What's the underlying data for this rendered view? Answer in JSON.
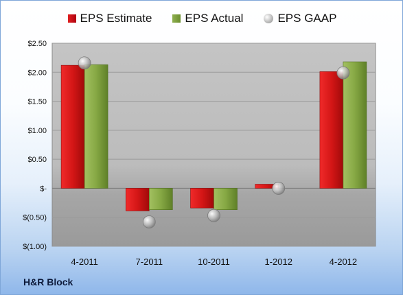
{
  "legend": {
    "estimate": "EPS Estimate",
    "actual": "EPS Actual",
    "gaap": "EPS GAAP"
  },
  "company": "H&R Block",
  "colors": {
    "estimate": "#d01a1a",
    "actual": "#7fa23e",
    "gaap": "#b0b0b0"
  },
  "chart_data": {
    "type": "bar",
    "categories": [
      "4-2011",
      "7-2011",
      "10-2011",
      "1-2012",
      "4-2012"
    ],
    "series": [
      {
        "name": "EPS Estimate",
        "values": [
          2.12,
          -0.39,
          -0.34,
          0.07,
          2.01
        ]
      },
      {
        "name": "EPS Actual",
        "values": [
          2.13,
          -0.37,
          -0.37,
          0.0,
          2.18
        ]
      },
      {
        "name": "EPS GAAP",
        "values": [
          2.16,
          -0.58,
          -0.47,
          0.0,
          1.99
        ]
      }
    ],
    "ylim": [
      -1.0,
      2.5
    ],
    "yticks": [
      -1.0,
      -0.5,
      0,
      0.5,
      1.0,
      1.5,
      2.0,
      2.5
    ],
    "ytick_labels": [
      "$(1.00)",
      "$(0.50)",
      "$-",
      "$0.50",
      "$1.00",
      "$1.50",
      "$2.00",
      "$2.50"
    ],
    "grid": true,
    "legend_position": "top"
  }
}
